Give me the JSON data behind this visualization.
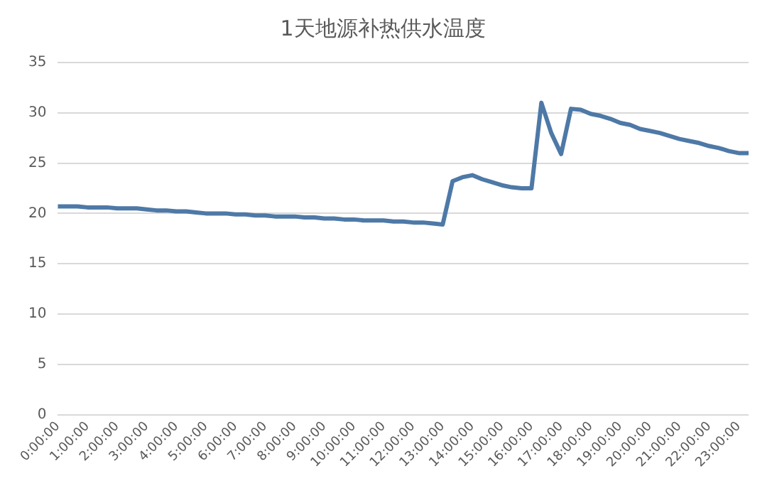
{
  "chart_data": {
    "type": "line",
    "title": "1天地源补热供水温度",
    "categories": [
      "0:00:00",
      null,
      null,
      "1:00:00",
      null,
      null,
      "2:00:00",
      null,
      null,
      "3:00:00",
      null,
      null,
      "4:00:00",
      null,
      null,
      "5:00:00",
      null,
      null,
      "6:00:00",
      null,
      null,
      "7:00:00",
      null,
      null,
      "8:00:00",
      null,
      null,
      "9:00:00",
      null,
      null,
      "10:00:00",
      null,
      null,
      "11:00:00",
      null,
      null,
      "12:00:00",
      null,
      null,
      "13:00:00",
      null,
      null,
      "14:00:00",
      null,
      null,
      "15:00:00",
      null,
      null,
      "16:00:00",
      null,
      null,
      "17:00:00",
      null,
      null,
      "18:00:00",
      null,
      null,
      "19:00:00",
      null,
      null,
      "20:00:00",
      null,
      null,
      "21:00:00",
      null,
      null,
      "22:00:00",
      null,
      null,
      "23:00:00",
      null
    ],
    "series": [
      {
        "color": "#4e79a7",
        "values": [
          20.7,
          20.7,
          20.7,
          20.6,
          20.6,
          20.6,
          20.5,
          20.5,
          20.5,
          20.4,
          20.3,
          20.3,
          20.2,
          20.2,
          20.1,
          20.0,
          20.0,
          20.0,
          19.9,
          19.9,
          19.8,
          19.8,
          19.7,
          19.7,
          19.7,
          19.6,
          19.6,
          19.5,
          19.5,
          19.4,
          19.4,
          19.3,
          19.3,
          19.3,
          19.2,
          19.2,
          19.1,
          19.1,
          19.0,
          18.9,
          23.2,
          23.6,
          23.8,
          23.4,
          23.1,
          22.8,
          22.6,
          22.5,
          22.5,
          31.0,
          28.0,
          25.9,
          30.4,
          30.3,
          29.9,
          29.7,
          29.4,
          29.0,
          28.8,
          28.4,
          28.2,
          28.0,
          27.7,
          27.4,
          27.2,
          27.0,
          26.7,
          26.5,
          26.2,
          26.0,
          26.0
        ]
      }
    ],
    "ylim": [
      0,
      35
    ],
    "yticks": [
      0,
      5,
      10,
      15,
      20,
      25,
      30,
      35
    ],
    "grid": "y",
    "legend": false,
    "marker": "none",
    "line_style": "solid"
  }
}
